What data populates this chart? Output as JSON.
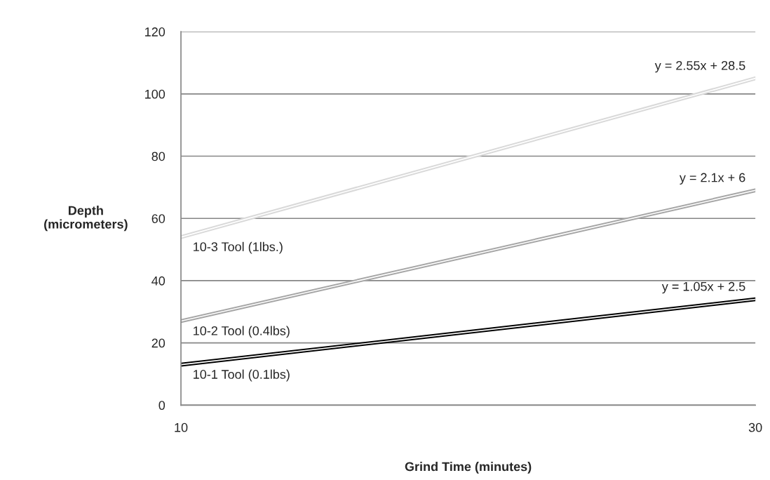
{
  "chart_data": {
    "type": "line",
    "xlabel": "Grind Time (minutes)",
    "ylabel": "Depth\n(micrometers)",
    "x": [
      10,
      30
    ],
    "xlim": [
      10,
      30
    ],
    "xticks": [
      10,
      30
    ],
    "ylim": [
      0,
      120
    ],
    "yticks": [
      0,
      20,
      40,
      60,
      80,
      100,
      120
    ],
    "grid": "y",
    "legend": false,
    "marker": "none",
    "line_style": "solid",
    "series": [
      {
        "name": "10-1 Tool (0.1lbs)",
        "color": "#000000",
        "values": [
          13,
          34
        ]
      },
      {
        "name": "10-2 Tool (0.4lbs)",
        "color": "#a6a6a6",
        "values": [
          27,
          69
        ]
      },
      {
        "name": "10-3 Tool (1lbs.)",
        "color": "#d9d9d9",
        "values": [
          54,
          105
        ]
      }
    ],
    "annotations": [
      "y = 1.05x + 2.5",
      "y = 2.1x + 6",
      "y = 2.55x + 28.5"
    ]
  }
}
